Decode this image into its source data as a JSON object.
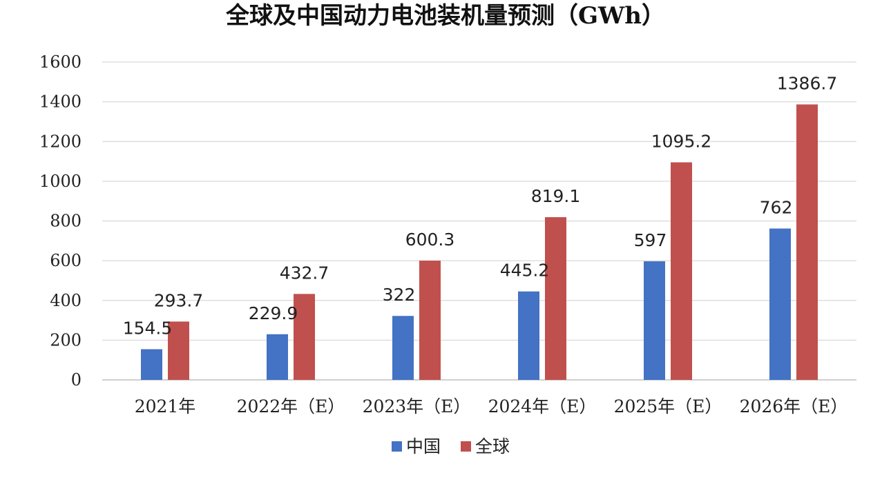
{
  "chart_data": {
    "type": "bar",
    "title": "全球及中国动力电池装机量预测（GWh）",
    "categories": [
      "2021年",
      "2022年（E）",
      "2023年（E）",
      "2024年（E）",
      "2025年（E）",
      "2026年（E）"
    ],
    "series": [
      {
        "name": "中国",
        "color": "#4472c4",
        "values": [
          154.5,
          229.9,
          322,
          445.2,
          597,
          762
        ]
      },
      {
        "name": "全球",
        "color": "#c0504d",
        "values": [
          293.7,
          432.7,
          600.3,
          819.1,
          1095.2,
          1386.7
        ]
      }
    ],
    "value_labels": [
      [
        "154.5",
        "229.9",
        "322",
        "445.2",
        "597",
        "762"
      ],
      [
        "293.7",
        "432.7",
        "600.3",
        "819.1",
        "1095.2",
        "1386.7"
      ]
    ],
    "yticks": [
      "0",
      "200",
      "400",
      "600",
      "800",
      "1000",
      "1200",
      "1400",
      "1600"
    ],
    "ylim": [
      0,
      1600
    ],
    "grid": true,
    "legend_position": "bottom"
  }
}
